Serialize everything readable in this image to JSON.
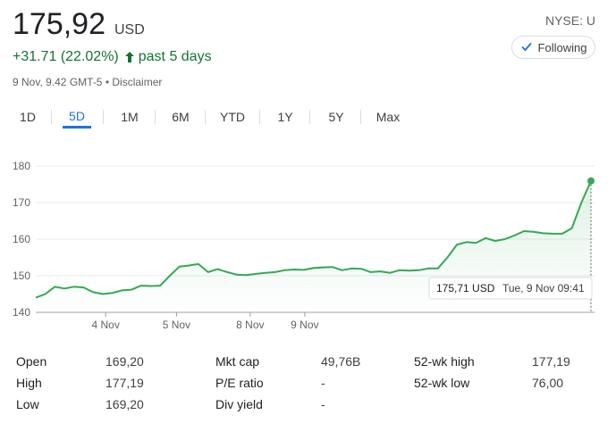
{
  "quote": {
    "price": "175,92",
    "currency": "USD",
    "change": "+31.71 (22.02%)",
    "period": "past 5 days",
    "timestamp": "9 Nov, 9.42 GMT-5",
    "disclaimer": "Disclaimer",
    "exchange": "NYSE: U",
    "follow_label": "Following"
  },
  "colors": {
    "positive": "#137333",
    "line": "#34a853",
    "accent": "#1a73e8"
  },
  "tabs": [
    "1D",
    "5D",
    "1M",
    "6M",
    "YTD",
    "1Y",
    "5Y",
    "Max"
  ],
  "active_tab": "5D",
  "tooltip": {
    "value": "175,71 USD",
    "time": "Tue, 9 Nov 09:41"
  },
  "chart_data": {
    "type": "area",
    "title": "",
    "xlabel": "",
    "ylabel": "",
    "ylim": [
      140,
      180
    ],
    "yticks": [
      140,
      150,
      160,
      170,
      180
    ],
    "x_tick_labels": [
      "4 Nov",
      "5 Nov",
      "8 Nov",
      "9 Nov"
    ],
    "x_tick_index": [
      7.3,
      14.7,
      22.4,
      28.1
    ],
    "series": [
      {
        "values": [
          144.0,
          145.0,
          147.0,
          146.5,
          147.0,
          146.8,
          145.5,
          145.0,
          145.3,
          146.0,
          146.2,
          147.3,
          147.2,
          147.3,
          150.0,
          152.5,
          152.8,
          153.2,
          151.0,
          151.8,
          151.0,
          150.3,
          150.2,
          150.5,
          150.8,
          151.0,
          151.5,
          151.7,
          151.6,
          152.1,
          152.3,
          152.4,
          151.5,
          152.0,
          151.9,
          151.0,
          151.2,
          150.8,
          151.5,
          151.4,
          151.5,
          152.0,
          152.0,
          155.0,
          158.5,
          159.2,
          159.0,
          160.3,
          159.5,
          160.0,
          161.0,
          162.2,
          162.0,
          161.6,
          161.5,
          161.5,
          163.0,
          170.0,
          175.92
        ]
      }
    ]
  },
  "stats": [
    {
      "label": "Open",
      "value": "169,20"
    },
    {
      "label": "High",
      "value": "177,19"
    },
    {
      "label": "Low",
      "value": "169,20"
    },
    {
      "label": "Mkt cap",
      "value": "49,76B"
    },
    {
      "label": "P/E ratio",
      "value": "-"
    },
    {
      "label": "Div yield",
      "value": "-"
    },
    {
      "label": "52-wk high",
      "value": "177,19"
    },
    {
      "label": "52-wk low",
      "value": "76,00"
    }
  ]
}
